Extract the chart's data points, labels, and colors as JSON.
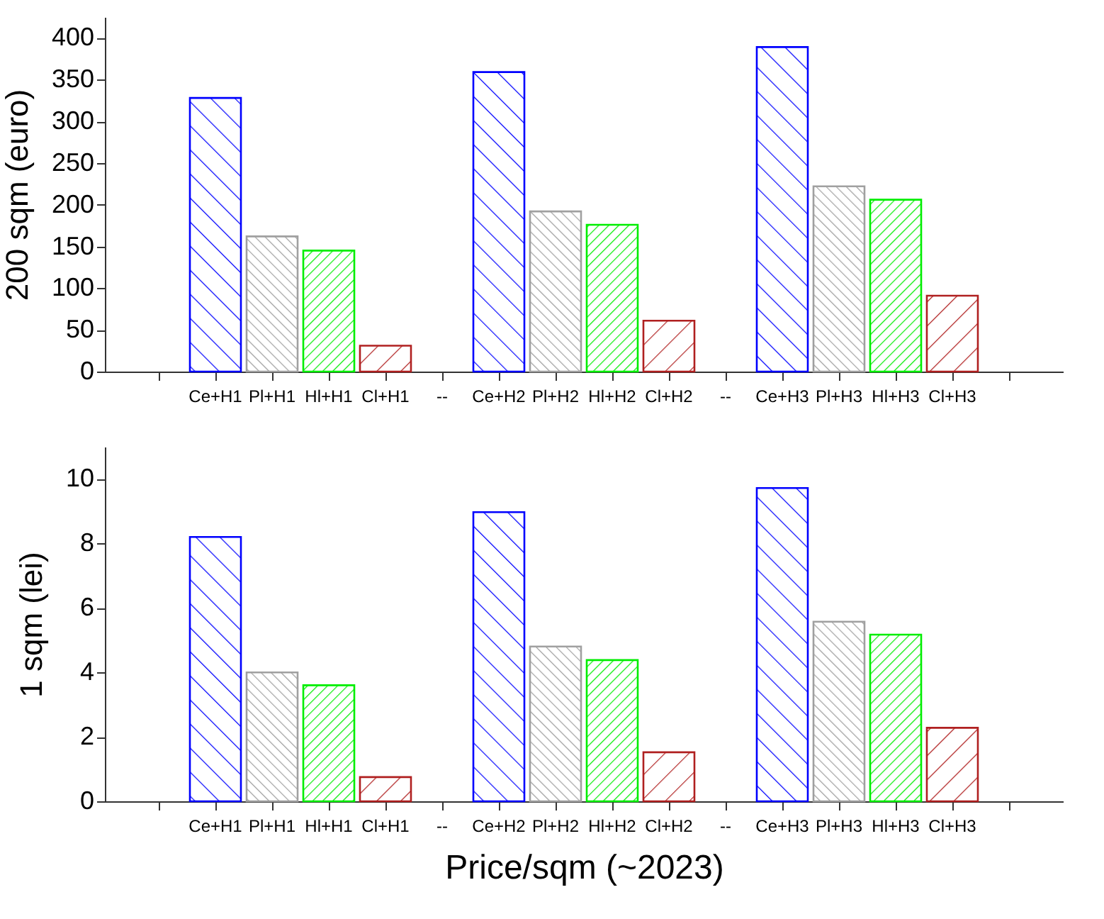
{
  "chart_data": [
    {
      "type": "bar",
      "ylabel": "200 sqm (euro)",
      "categories": [
        null,
        "Ce+H1",
        "Pl+H1",
        "Hl+H1",
        "Cl+H1",
        "--",
        "Ce+H2",
        "Pl+H2",
        "Hl+H2",
        "Cl+H2",
        "--",
        "Ce+H3",
        "Pl+H3",
        "Hl+H3",
        "Cl+H3",
        null
      ],
      "values": [
        null,
        328,
        162,
        145,
        31,
        null,
        359,
        192,
        176,
        61,
        null,
        389,
        222,
        206,
        91,
        null
      ],
      "colors": [
        null,
        "#0000ff",
        "#a0a0a0",
        "#00ee00",
        "#b02020",
        null,
        "#0000ff",
        "#a0a0a0",
        "#00ee00",
        "#b02020",
        null,
        "#0000ff",
        "#a0a0a0",
        "#00ee00",
        "#b02020",
        null
      ],
      "ylim": [
        0,
        425
      ],
      "yticks": [
        0,
        50,
        100,
        150,
        200,
        250,
        300,
        350,
        400
      ],
      "grid": false
    },
    {
      "type": "bar",
      "ylabel": "1 sqm (lei)",
      "xlabel": "Price/sqm (~2023)",
      "categories": [
        null,
        "Ce+H1",
        "Pl+H1",
        "Hl+H1",
        "Cl+H1",
        "--",
        "Ce+H2",
        "Pl+H2",
        "Hl+H2",
        "Cl+H2",
        "--",
        "Ce+H3",
        "Pl+H3",
        "Hl+H3",
        "Cl+H3",
        null
      ],
      "values": [
        null,
        8.2,
        4.0,
        3.6,
        0.75,
        null,
        8.97,
        4.8,
        4.38,
        1.52,
        null,
        9.72,
        5.57,
        5.17,
        2.28,
        null
      ],
      "colors": [
        null,
        "#0000ff",
        "#a0a0a0",
        "#00ee00",
        "#b02020",
        null,
        "#0000ff",
        "#a0a0a0",
        "#00ee00",
        "#b02020",
        null,
        "#0000ff",
        "#a0a0a0",
        "#00ee00",
        "#b02020",
        null
      ],
      "ylim": [
        0,
        11
      ],
      "yticks": [
        0,
        2,
        4,
        6,
        8,
        10
      ],
      "grid": false
    }
  ]
}
